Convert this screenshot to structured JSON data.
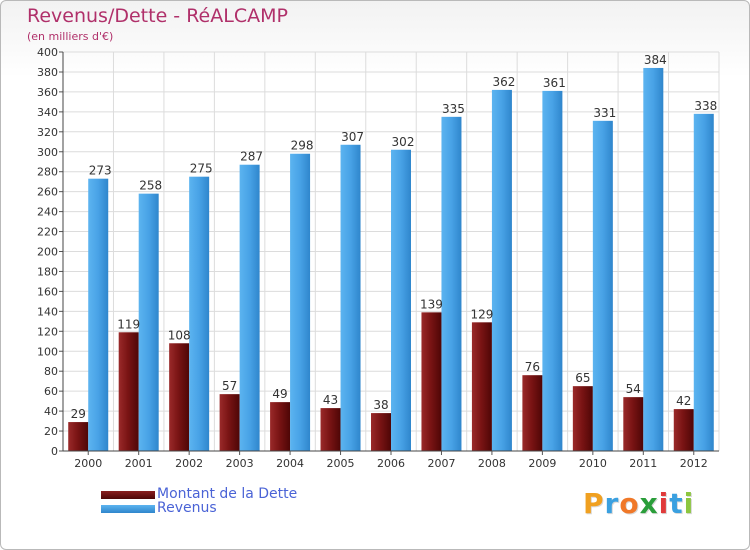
{
  "title": "Revenus/Dette - RéALCAMP",
  "subtitle": "(en milliers d'€)",
  "legend": {
    "items": [
      {
        "label": "Montant de la Dette",
        "color": "#6b0d0d"
      },
      {
        "label": "Revenus",
        "color": "#4aa3e6"
      }
    ]
  },
  "logo": {
    "letters": [
      "P",
      "r",
      "o",
      "x",
      "i",
      "t",
      "i"
    ],
    "colors": [
      "#f0a020",
      "#3aa0e0",
      "#f07828",
      "#2a9e3a",
      "#e03a3a",
      "#3aa0e0",
      "#8cc63f"
    ]
  },
  "chart_data": {
    "type": "bar",
    "title": "Revenus/Dette - RéALCAMP",
    "subtitle": "(en milliers d'€)",
    "categories": [
      "2000",
      "2001",
      "2002",
      "2003",
      "2004",
      "2005",
      "2006",
      "2007",
      "2008",
      "2009",
      "2010",
      "2011",
      "2012"
    ],
    "series": [
      {
        "name": "Montant de la Dette",
        "color": "#6b0d0d",
        "values": [
          29,
          119,
          108,
          57,
          49,
          43,
          38,
          139,
          129,
          76,
          65,
          54,
          42
        ]
      },
      {
        "name": "Revenus",
        "color": "#4aa3e6",
        "values": [
          273,
          258,
          275,
          287,
          298,
          307,
          302,
          335,
          362,
          361,
          331,
          384,
          338
        ]
      }
    ],
    "ylim": [
      0,
      400
    ],
    "yticks": [
      0,
      20,
      40,
      60,
      80,
      100,
      120,
      140,
      160,
      180,
      200,
      220,
      240,
      260,
      280,
      300,
      320,
      340,
      360,
      380,
      400
    ],
    "grid": true,
    "legend_position": "bottom-left"
  }
}
